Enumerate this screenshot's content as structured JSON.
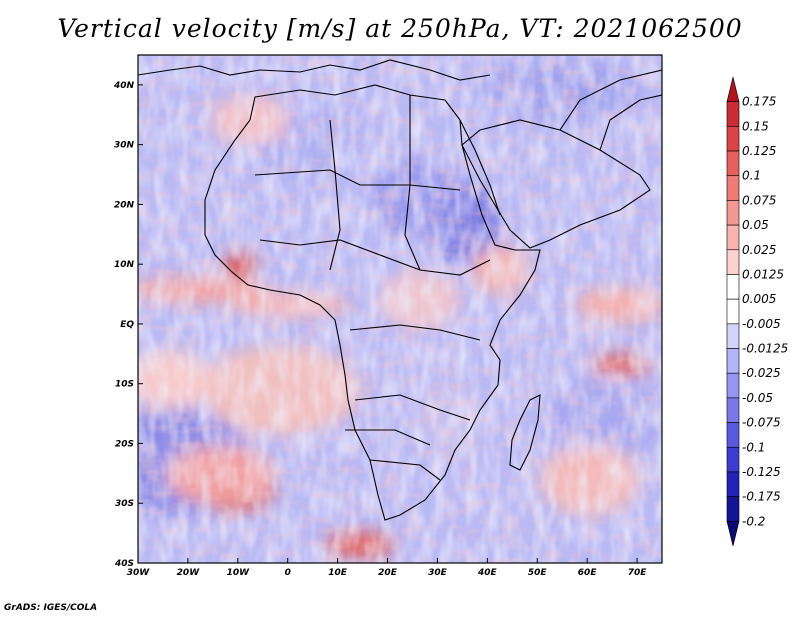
{
  "title": "Vertical velocity [m/s] at 250hPa, VT: 2021062500",
  "credit": "GrADS: IGES/COLA",
  "map": {
    "lon_range": [
      -30,
      75
    ],
    "lat_range": [
      -40,
      45
    ],
    "lon_ticks": [
      {
        "value": -30,
        "label": "30W"
      },
      {
        "value": -20,
        "label": "20W"
      },
      {
        "value": -10,
        "label": "10W"
      },
      {
        "value": 0,
        "label": "0"
      },
      {
        "value": 10,
        "label": "10E"
      },
      {
        "value": 20,
        "label": "20E"
      },
      {
        "value": 30,
        "label": "30E"
      },
      {
        "value": 40,
        "label": "40E"
      },
      {
        "value": 50,
        "label": "50E"
      },
      {
        "value": 60,
        "label": "60E"
      },
      {
        "value": 70,
        "label": "70E"
      }
    ],
    "lat_ticks": [
      {
        "value": 40,
        "label": "40N"
      },
      {
        "value": 30,
        "label": "30N"
      },
      {
        "value": 20,
        "label": "20N"
      },
      {
        "value": 10,
        "label": "10N"
      },
      {
        "value": 0,
        "label": "EQ"
      },
      {
        "value": -10,
        "label": "10S"
      },
      {
        "value": -20,
        "label": "20S"
      },
      {
        "value": -30,
        "label": "30S"
      },
      {
        "value": -40,
        "label": "40S"
      }
    ]
  },
  "colorbar": {
    "labels": [
      "0.175",
      "0.15",
      "0.125",
      "0.1",
      "0.075",
      "0.05",
      "0.025",
      "0.0125",
      "0.005",
      "-0.005",
      "-0.0125",
      "-0.025",
      "-0.05",
      "-0.075",
      "-0.1",
      "-0.125",
      "-0.175",
      "-0.2"
    ],
    "colors": [
      "#b4141e",
      "#cc2c34",
      "#dc4448",
      "#e8605e",
      "#f07c78",
      "#f49892",
      "#f8b4ae",
      "#fcd2ce",
      "#ffffff",
      "#ffffff",
      "#d2d2fa",
      "#b4b4f8",
      "#9696f2",
      "#7878ea",
      "#5a5ae0",
      "#3c3cd2",
      "#2323b9",
      "#141496",
      "#0a0a78"
    ]
  }
}
